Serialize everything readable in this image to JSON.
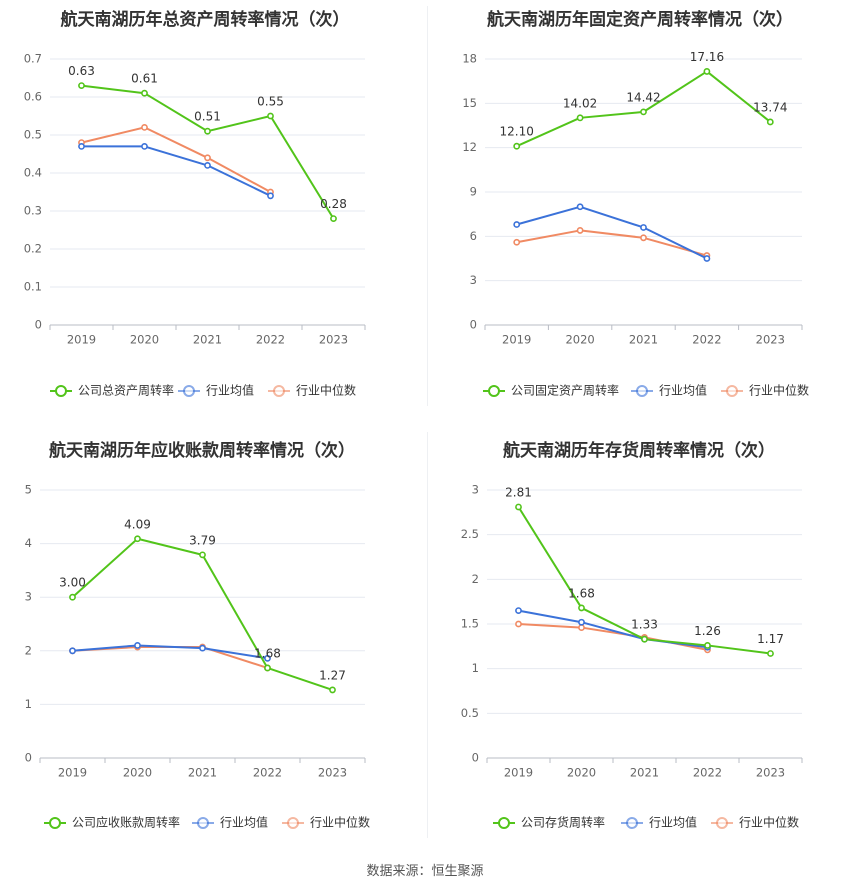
{
  "source_label": "数据来源：恒生聚源",
  "chart_data": [
    {
      "type": "line",
      "title": "航天南湖历年总资产周转率情况（次）",
      "categories": [
        "2019",
        "2020",
        "2021",
        "2022",
        "2023"
      ],
      "ylim": [
        0,
        0.7
      ],
      "yticks": [
        0,
        0.1,
        0.2,
        0.3,
        0.4,
        0.5,
        0.6,
        0.7
      ],
      "ytick_labels": [
        "0",
        "0.1",
        "0.2",
        "0.3",
        "0.4",
        "0.5",
        "0.6",
        "0.7"
      ],
      "grid": true,
      "legend_position": "bottom",
      "series": [
        {
          "name": "公司总资产周转率",
          "color": "#52c41a",
          "labeled": true,
          "values": [
            0.63,
            0.61,
            0.51,
            0.55,
            0.28
          ],
          "labels": [
            "0.63",
            "0.61",
            "0.51",
            "0.55",
            "0.28"
          ]
        },
        {
          "name": "行业均值",
          "color": "#3b72d9",
          "values": [
            0.47,
            0.47,
            0.42,
            0.34,
            null
          ]
        },
        {
          "name": "行业中位数",
          "color": "#f08a63",
          "values": [
            0.48,
            0.52,
            0.44,
            0.35,
            null
          ]
        }
      ]
    },
    {
      "type": "line",
      "title": "航天南湖历年固定资产周转率情况（次）",
      "categories": [
        "2019",
        "2020",
        "2021",
        "2022",
        "2023"
      ],
      "ylim": [
        0,
        18
      ],
      "yticks": [
        0,
        3,
        6,
        9,
        12,
        15,
        18
      ],
      "ytick_labels": [
        "0",
        "3",
        "6",
        "9",
        "12",
        "15",
        "18"
      ],
      "grid": true,
      "legend_position": "bottom",
      "series": [
        {
          "name": "公司固定资产周转率",
          "color": "#52c41a",
          "labeled": true,
          "values": [
            12.1,
            14.02,
            14.42,
            17.16,
            13.74
          ],
          "labels": [
            "12.10",
            "14.02",
            "14.42",
            "17.16",
            "13.74"
          ]
        },
        {
          "name": "行业均值",
          "color": "#3b72d9",
          "values": [
            6.8,
            8.0,
            6.6,
            4.5,
            null
          ]
        },
        {
          "name": "行业中位数",
          "color": "#f08a63",
          "values": [
            5.6,
            6.4,
            5.9,
            4.7,
            null
          ]
        }
      ]
    },
    {
      "type": "line",
      "title": "航天南湖历年应收账款周转率情况（次）",
      "categories": [
        "2019",
        "2020",
        "2021",
        "2022",
        "2023"
      ],
      "ylim": [
        0,
        5
      ],
      "yticks": [
        0,
        1,
        2,
        3,
        4,
        5
      ],
      "ytick_labels": [
        "0",
        "1",
        "2",
        "3",
        "4",
        "5"
      ],
      "grid": true,
      "legend_position": "bottom",
      "series": [
        {
          "name": "公司应收账款周转率",
          "color": "#52c41a",
          "labeled": true,
          "values": [
            3.0,
            4.09,
            3.79,
            1.68,
            1.27
          ],
          "labels": [
            "3.00",
            "4.09",
            "3.79",
            "1.68",
            "1.27"
          ]
        },
        {
          "name": "行业均值",
          "color": "#3b72d9",
          "values": [
            2.0,
            2.1,
            2.05,
            1.86,
            null
          ]
        },
        {
          "name": "行业中位数",
          "color": "#f08a63",
          "values": [
            2.0,
            2.07,
            2.07,
            1.68,
            null
          ]
        }
      ]
    },
    {
      "type": "line",
      "title": "航天南湖历年存货周转率情况（次）",
      "categories": [
        "2019",
        "2020",
        "2021",
        "2022",
        "2023"
      ],
      "ylim": [
        0,
        3
      ],
      "yticks": [
        0,
        0.5,
        1,
        1.5,
        2,
        2.5,
        3
      ],
      "ytick_labels": [
        "0",
        "0.5",
        "1",
        "1.5",
        "2",
        "2.5",
        "3"
      ],
      "grid": true,
      "legend_position": "bottom",
      "series": [
        {
          "name": "公司存货周转率",
          "color": "#52c41a",
          "labeled": true,
          "values": [
            2.81,
            1.68,
            1.33,
            1.26,
            1.17
          ],
          "labels": [
            "2.81",
            "1.68",
            "1.33",
            "1.26",
            "1.17"
          ]
        },
        {
          "name": "行业均值",
          "color": "#3b72d9",
          "values": [
            1.65,
            1.52,
            1.33,
            1.24,
            null
          ]
        },
        {
          "name": "行业中位数",
          "color": "#f08a63",
          "values": [
            1.5,
            1.46,
            1.35,
            1.21,
            null
          ]
        }
      ]
    }
  ]
}
